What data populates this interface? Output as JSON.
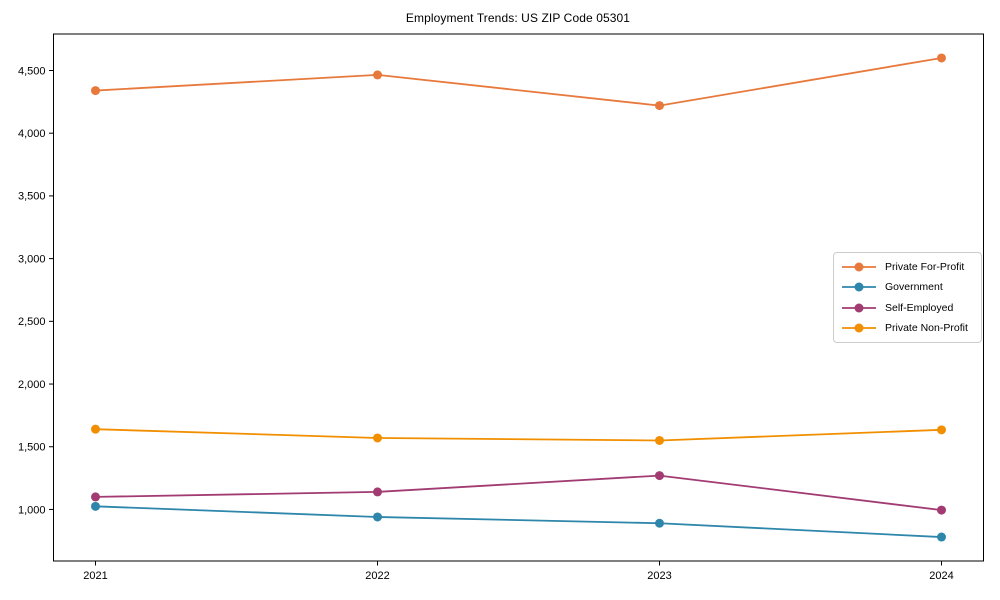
{
  "chart_data": {
    "type": "line",
    "title": "Employment Trends: US ZIP Code 05301",
    "categories": [
      "2021",
      "2022",
      "2023",
      "2024"
    ],
    "series": [
      {
        "name": "Private For-Profit",
        "color": "#E8793C",
        "values": [
          4340,
          4465,
          4220,
          4600
        ]
      },
      {
        "name": "Government",
        "color": "#2E86AB",
        "values": [
          1025,
          940,
          890,
          780
        ]
      },
      {
        "name": "Self-Employed",
        "color": "#A23B72",
        "values": [
          1100,
          1140,
          1270,
          995
        ]
      },
      {
        "name": "Private Non-Profit",
        "color": "#F18F01",
        "values": [
          1640,
          1570,
          1550,
          1635
        ]
      }
    ],
    "yticks": [
      1000,
      1500,
      2000,
      2500,
      3000,
      3500,
      4000,
      4500
    ],
    "ytick_labels": [
      "1,000",
      "1,500",
      "2,000",
      "2,500",
      "3,000",
      "3,500",
      "4,000",
      "4,500"
    ],
    "ylim": [
      589,
      4791
    ],
    "xlabel": "",
    "ylabel": "",
    "grid": false,
    "marker": "circle",
    "legend_position": "right-center",
    "style": {
      "axis_color": "#000000",
      "background": "#ffffff",
      "legend_border": "#cccccc"
    }
  }
}
